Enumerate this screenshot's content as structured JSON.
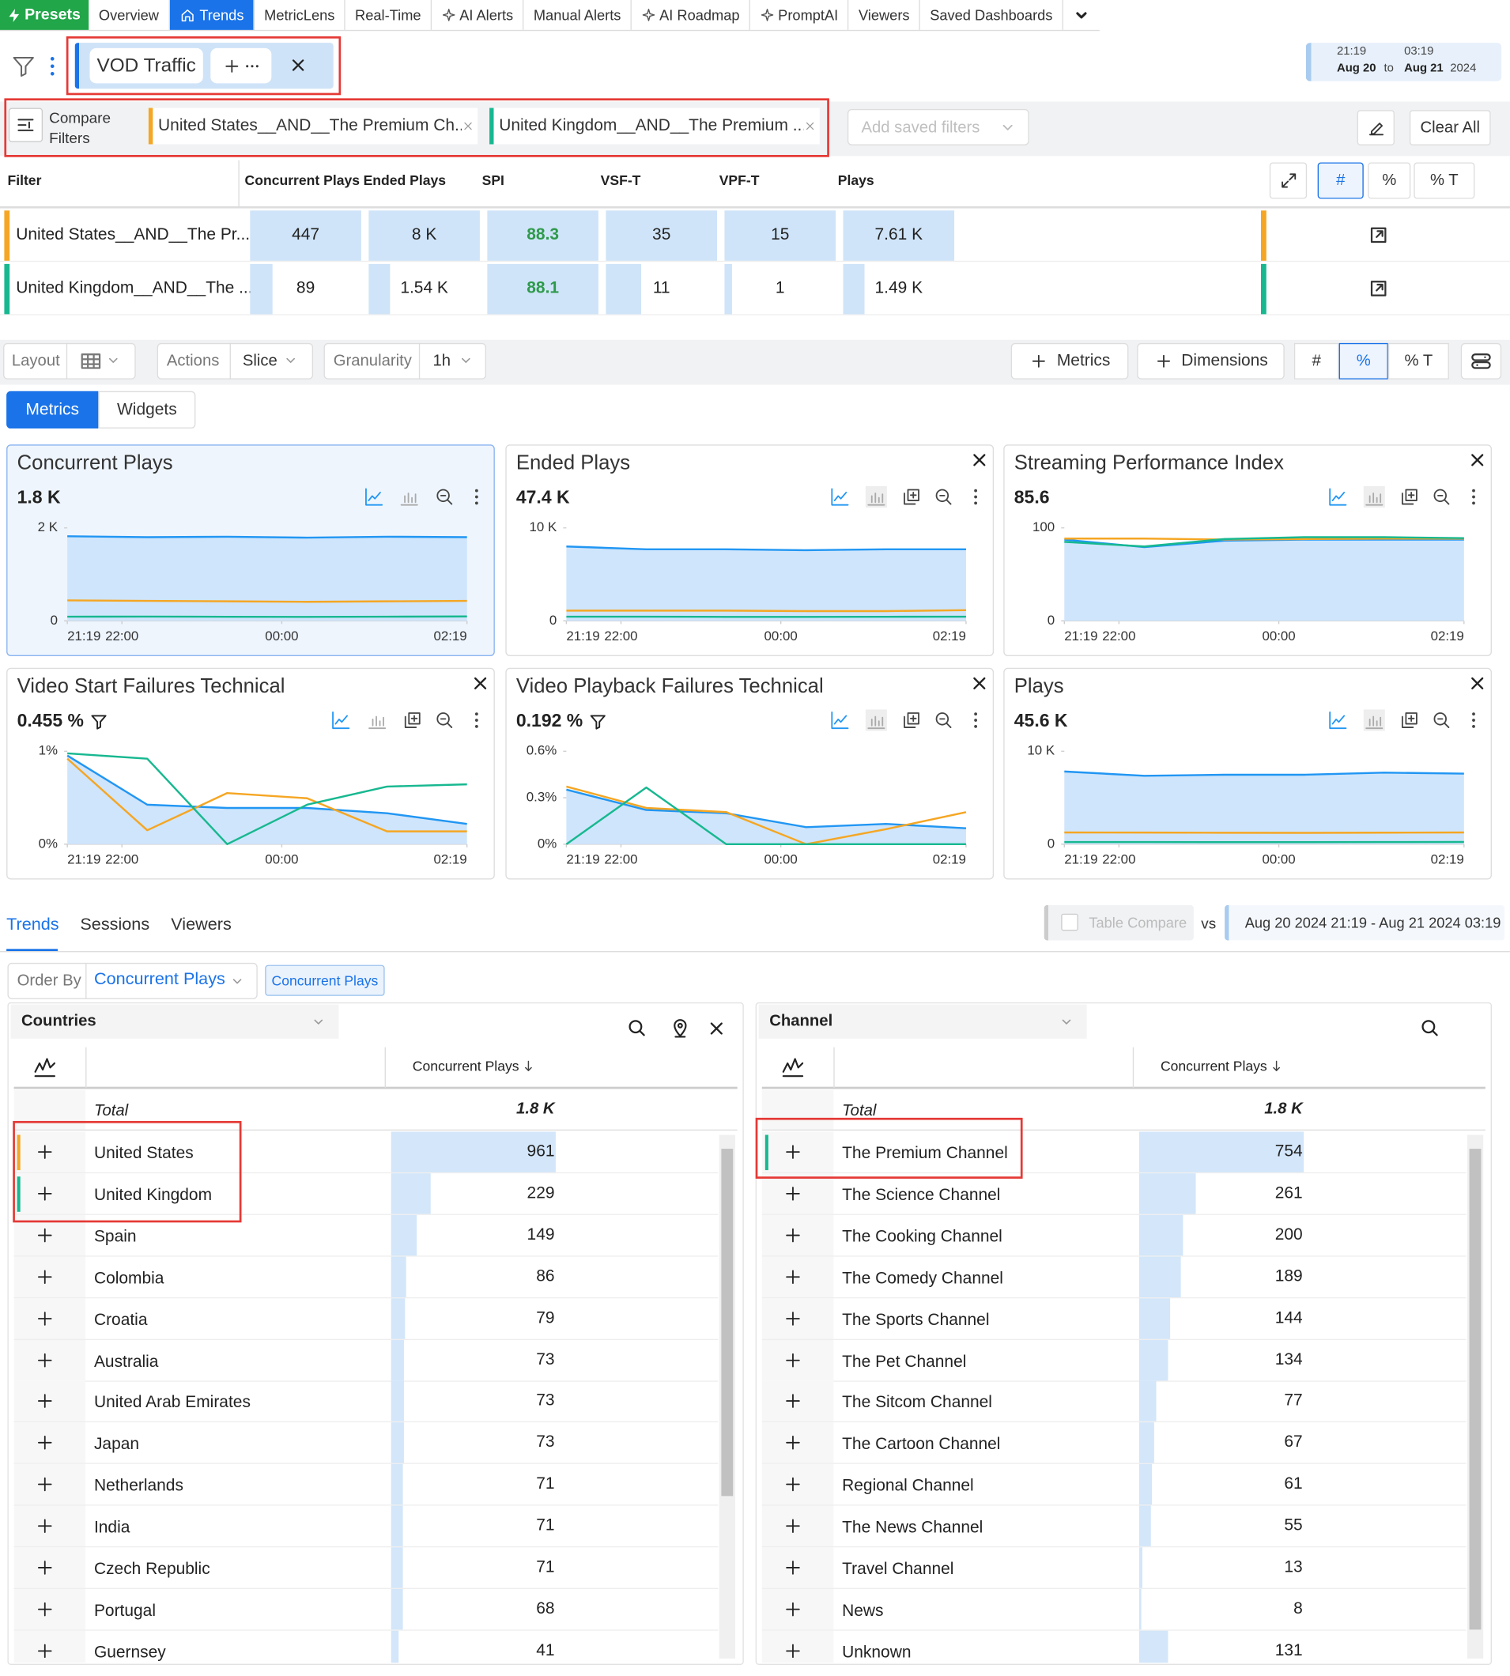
{
  "nav": {
    "brand": "Presets",
    "tabs": [
      "Overview",
      "Trends",
      "MetricLens",
      "Real-Time",
      "AI Alerts",
      "Manual Alerts",
      "AI Roadmap",
      "PromptAI",
      "Viewers",
      "Saved Dashboards"
    ],
    "active": 1
  },
  "filter": {
    "chip": "VOD Traffic"
  },
  "date_range": {
    "from_time": "21:19",
    "from_date": "Aug 20",
    "to": "to",
    "to_time": "03:19",
    "to_date": "Aug 21",
    "year": "2024"
  },
  "compare_filters": {
    "label": "Compare Filters",
    "chips": [
      {
        "text": "United States__AND__The Premium Ch...",
        "color": "#f5a623"
      },
      {
        "text": "United Kingdom__AND__The Premium ...",
        "color": "#17b890"
      }
    ],
    "saved_placeholder": "Add saved filters",
    "clear": "Clear All"
  },
  "compare_table": {
    "columns": [
      "Filter",
      "Concurrent Plays",
      "Ended Plays",
      "SPI",
      "VSF-T",
      "VPF-T",
      "Plays"
    ],
    "modes": [
      "#",
      "%",
      "% T"
    ],
    "rows": [
      {
        "color": "#f5a623",
        "cells": [
          "United States__AND__The Pr...",
          "447",
          "8 K",
          "88.3",
          "35",
          "15",
          "7.61 K"
        ]
      },
      {
        "color": "#17b890",
        "cells": [
          "United Kingdom__AND__The ...",
          "89",
          "1.54 K",
          "88.1",
          "11",
          "1",
          "1.49 K"
        ]
      }
    ]
  },
  "toolbar": {
    "layout": "Layout",
    "actions": "Actions",
    "slice": "Slice",
    "granularity": "Granularity",
    "granularity_value": "1h",
    "add_metrics": "Metrics",
    "add_dimensions": "Dimensions",
    "modes": [
      "#",
      "%",
      "% T"
    ]
  },
  "view_tabs": [
    "Metrics",
    "Widgets"
  ],
  "chart_data": [
    {
      "type": "line",
      "title": "Concurrent Plays",
      "headline": "1.8 K",
      "x": [
        0,
        1,
        2,
        3,
        4,
        5
      ],
      "xlim": [
        0,
        5
      ],
      "xticks": [
        {
          "value": 0,
          "label": "21:19"
        },
        {
          "value": 0.683,
          "label": "22:00"
        },
        {
          "value": 2.683,
          "label": "00:00"
        },
        {
          "value": 5,
          "label": "02:19"
        }
      ],
      "ylim": [
        0,
        2000
      ],
      "yticks": [
        0,
        {
          "value": 2000,
          "label": "2 K"
        }
      ],
      "grid": false,
      "series": [
        {
          "color": "#2196f3",
          "fill": "#cfe5fb",
          "values": [
            1820,
            1800,
            1810,
            1790,
            1810,
            1800
          ]
        },
        {
          "color": "#f5a623",
          "values": [
            440,
            430,
            420,
            410,
            420,
            430
          ]
        },
        {
          "color": "#17b890",
          "values": [
            90,
            92,
            88,
            85,
            90,
            95
          ]
        }
      ]
    },
    {
      "type": "line",
      "title": "Ended Plays",
      "headline": "47.4 K",
      "x": [
        0,
        1,
        2,
        3,
        4,
        5
      ],
      "xlim": [
        0,
        5
      ],
      "xticks": [
        {
          "value": 0,
          "label": "21:19"
        },
        {
          "value": 0.683,
          "label": "22:00"
        },
        {
          "value": 2.683,
          "label": "00:00"
        },
        {
          "value": 5,
          "label": "02:19"
        }
      ],
      "ylim": [
        0,
        10000
      ],
      "yticks": [
        0,
        {
          "value": 10000,
          "label": "10 K"
        }
      ],
      "grid": false,
      "series": [
        {
          "color": "#2196f3",
          "fill": "#cfe5fb",
          "values": [
            8000,
            7700,
            7700,
            7600,
            7700,
            7700
          ]
        },
        {
          "color": "#f5a623",
          "values": [
            1100,
            1100,
            1100,
            1050,
            1050,
            1150
          ]
        },
        {
          "color": "#17b890",
          "values": [
            450,
            450,
            430,
            430,
            440,
            450
          ]
        }
      ]
    },
    {
      "type": "line",
      "title": "Streaming Performance Index",
      "headline": "85.6",
      "x": [
        0,
        1,
        2,
        3,
        4,
        5
      ],
      "xlim": [
        0,
        5
      ],
      "xticks": [
        {
          "value": 0,
          "label": "21:19"
        },
        {
          "value": 0.683,
          "label": "22:00"
        },
        {
          "value": 2.683,
          "label": "00:00"
        },
        {
          "value": 5,
          "label": "02:19"
        }
      ],
      "ylim": [
        0,
        100
      ],
      "yticks": [
        0,
        100
      ],
      "grid": false,
      "series": [
        {
          "color": "#2196f3",
          "fill": "#cfe5fb",
          "values": [
            87.4,
            79.3,
            86.2,
            87.4,
            87.4,
            87.4
          ]
        },
        {
          "color": "#f5a623",
          "values": [
            88.5,
            88.5,
            87.5,
            88,
            88.5,
            88.5
          ]
        },
        {
          "color": "#17b890",
          "values": [
            85,
            80,
            88,
            90,
            90,
            89
          ]
        }
      ]
    },
    {
      "type": "line",
      "title": "Video Start Failures Technical",
      "headline": "0.455 %",
      "headline_filter": true,
      "x": [
        0,
        1,
        2,
        3,
        4,
        5
      ],
      "xlim": [
        0,
        5
      ],
      "xticks": [
        {
          "value": 0,
          "label": "21:19"
        },
        {
          "value": 0.683,
          "label": "22:00"
        },
        {
          "value": 2.683,
          "label": "00:00"
        },
        {
          "value": 5,
          "label": "02:19"
        }
      ],
      "ylim": [
        0,
        1
      ],
      "yticks": [
        {
          "value": 0,
          "label": "0%"
        },
        {
          "value": 1,
          "label": "1%"
        }
      ],
      "grid": false,
      "series": [
        {
          "color": "#2196f3",
          "fill": "#cfe5fb",
          "values": [
            0.954,
            0.425,
            0.39,
            0.39,
            0.333,
            0.218
          ]
        },
        {
          "color": "#f5a623",
          "values": [
            0.92,
            0.15,
            0.55,
            0.494,
            0.138,
            0.138
          ]
        },
        {
          "color": "#17b890",
          "values": [
            0.977,
            0.92,
            0,
            0.425,
            0.62,
            0.644
          ]
        }
      ]
    },
    {
      "type": "line",
      "title": "Video Playback Failures Technical",
      "headline": "0.192 %",
      "headline_filter": true,
      "x": [
        0,
        1,
        2,
        3,
        4,
        5
      ],
      "xlim": [
        0,
        5
      ],
      "xticks": [
        {
          "value": 0,
          "label": "21:19"
        },
        {
          "value": 0.683,
          "label": "22:00"
        },
        {
          "value": 2.683,
          "label": "00:00"
        },
        {
          "value": 5,
          "label": "02:19"
        }
      ],
      "ylim": [
        0,
        0.6
      ],
      "yticks": [
        {
          "value": 0,
          "label": "0%"
        },
        {
          "value": 0.3,
          "label": "0.3%"
        },
        {
          "value": 0.6,
          "label": "0.6%"
        }
      ],
      "grid": false,
      "series": [
        {
          "color": "#2196f3",
          "fill": "#cfe5fb",
          "values": [
            0.352,
            0.221,
            0.2,
            0.11,
            0.131,
            0.103
          ]
        },
        {
          "color": "#f5a623",
          "values": [
            0.372,
            0.234,
            0.207,
            0,
            0.097,
            0.207
          ]
        },
        {
          "color": "#17b890",
          "values": [
            0,
            0.366,
            0,
            0,
            0,
            0
          ]
        }
      ]
    },
    {
      "type": "line",
      "title": "Plays",
      "headline": "45.6 K",
      "x": [
        0,
        1,
        2,
        3,
        4,
        5
      ],
      "xlim": [
        0,
        5
      ],
      "xticks": [
        {
          "value": 0,
          "label": "21:19"
        },
        {
          "value": 0.683,
          "label": "22:00"
        },
        {
          "value": 2.683,
          "label": "00:00"
        },
        {
          "value": 5,
          "label": "02:19"
        }
      ],
      "ylim": [
        0,
        10000
      ],
      "yticks": [
        0,
        {
          "value": 10000,
          "label": "10 K"
        }
      ],
      "grid": false,
      "series": [
        {
          "color": "#2196f3",
          "fill": "#cfe5fb",
          "values": [
            7820,
            7360,
            7470,
            7470,
            7700,
            7590
          ]
        },
        {
          "color": "#f5a623",
          "values": [
            1260,
            1250,
            1230,
            1220,
            1240,
            1260
          ]
        },
        {
          "color": "#17b890",
          "values": [
            230,
            230,
            220,
            220,
            230,
            240
          ]
        }
      ]
    }
  ],
  "bottom": {
    "tabs": [
      "Trends",
      "Sessions",
      "Viewers"
    ],
    "table_compare": "Table Compare",
    "vs": "vs",
    "range": "Aug 20 2024 21:19 - Aug 21 2024 03:19",
    "order_by_label": "Order By",
    "order_by": "Concurrent Plays",
    "order_chip": "Concurrent Plays"
  },
  "dimension_tables": [
    {
      "dimension": "Countries",
      "column": "Concurrent Plays",
      "total_label": "Total",
      "total": "1.8 K",
      "rows": [
        {
          "name": "United States",
          "value": 961,
          "color": "#f5a623"
        },
        {
          "name": "United Kingdom",
          "value": 229,
          "color": "#17b890"
        },
        {
          "name": "Spain",
          "value": 149
        },
        {
          "name": "Colombia",
          "value": 86
        },
        {
          "name": "Croatia",
          "value": 79
        },
        {
          "name": "Australia",
          "value": 73
        },
        {
          "name": "United Arab Emirates",
          "value": 73
        },
        {
          "name": "Japan",
          "value": 73
        },
        {
          "name": "Netherlands",
          "value": 71
        },
        {
          "name": "India",
          "value": 71
        },
        {
          "name": "Czech Republic",
          "value": 71
        },
        {
          "name": "Portugal",
          "value": 68
        },
        {
          "name": "Guernsey",
          "value": 41
        }
      ]
    },
    {
      "dimension": "Channel",
      "column": "Concurrent Plays",
      "total_label": "Total",
      "total": "1.8 K",
      "rows": [
        {
          "name": "The Premium Channel",
          "value": 754,
          "color": "#17b890"
        },
        {
          "name": "The Science Channel",
          "value": 261
        },
        {
          "name": "The Cooking Channel",
          "value": 200
        },
        {
          "name": "The Comedy Channel",
          "value": 189
        },
        {
          "name": "The Sports Channel",
          "value": 144
        },
        {
          "name": "The Pet Channel",
          "value": 134
        },
        {
          "name": "The Sitcom Channel",
          "value": 77
        },
        {
          "name": "The Cartoon Channel",
          "value": 67
        },
        {
          "name": "Regional Channel",
          "value": 61
        },
        {
          "name": "The News Channel",
          "value": 55
        },
        {
          "name": "Travel Channel",
          "value": 13
        },
        {
          "name": "News",
          "value": 8
        },
        {
          "name": "Unknown",
          "value": 131
        }
      ]
    }
  ]
}
